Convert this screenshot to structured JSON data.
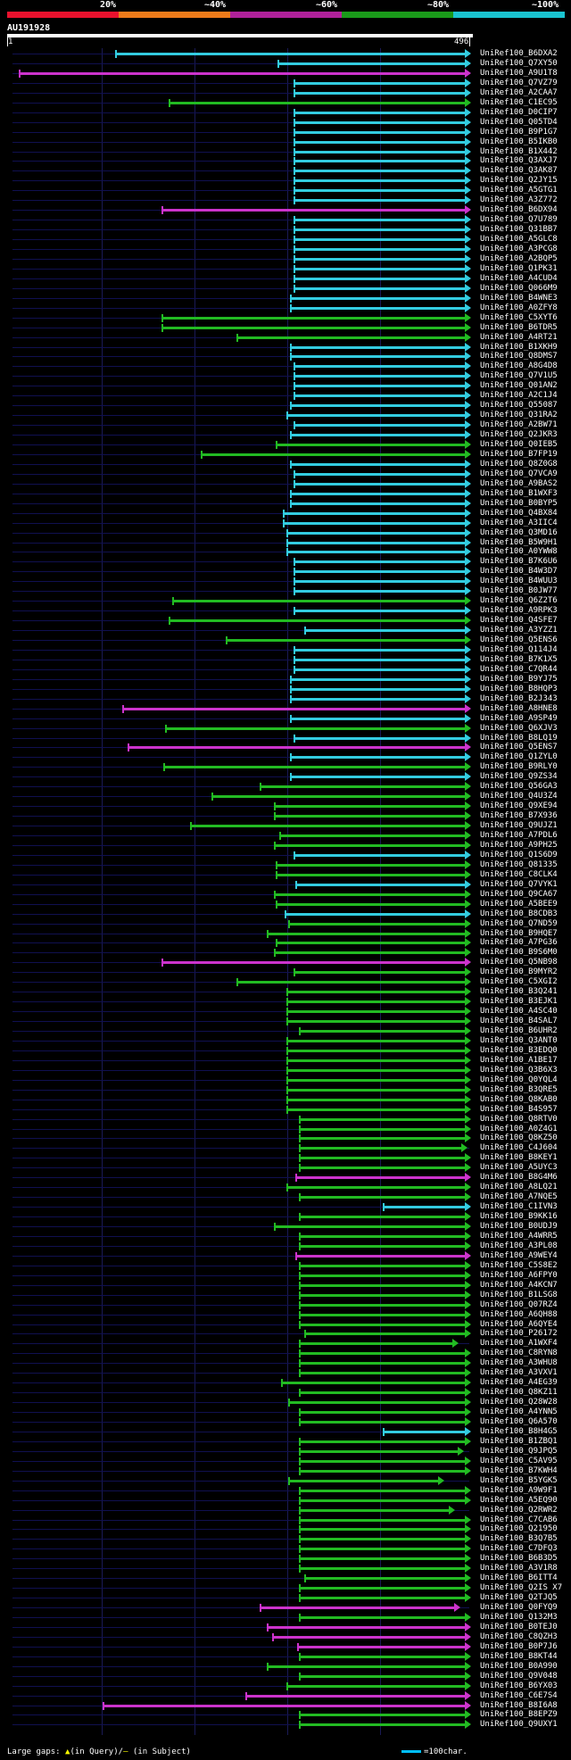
{
  "scale": {
    "labels": [
      "20%",
      "~40%",
      "~60%",
      "~80%",
      "~100%"
    ],
    "colors": [
      "#e8112d",
      "#ee7b1a",
      "#b0219a",
      "#1a9a1a",
      "#1ac4d0"
    ]
  },
  "query": {
    "title": "AU191928",
    "start": "1",
    "end": "496"
  },
  "footer": {
    "gaps_label": "Large gaps: ",
    "in_query": "(in Query)/",
    "in_subject": " (in Subject)",
    "scale_label": "=100char."
  },
  "hits": [
    [
      "B6DXA2",
      130,
      528,
      "c"
    ],
    [
      "Q7XY50",
      312,
      528,
      "c"
    ],
    [
      "A9U1T8",
      22,
      528,
      "m"
    ],
    [
      "Q7VZ79",
      330,
      528,
      "c"
    ],
    [
      "A2CAA7",
      330,
      528,
      "c"
    ],
    [
      "C1EC95",
      190,
      528,
      "g"
    ],
    [
      "D0CIP7",
      330,
      528,
      "c"
    ],
    [
      "Q05TD4",
      330,
      528,
      "c"
    ],
    [
      "B9P1G7",
      330,
      528,
      "c"
    ],
    [
      "B5IKB0",
      330,
      528,
      "c"
    ],
    [
      "B1X442",
      330,
      528,
      "c"
    ],
    [
      "Q3AXJ7",
      330,
      528,
      "c"
    ],
    [
      "Q3AK87",
      330,
      528,
      "c"
    ],
    [
      "Q2JY15",
      330,
      528,
      "c"
    ],
    [
      "A5GTG1",
      330,
      528,
      "c"
    ],
    [
      "A3Z772",
      330,
      528,
      "c"
    ],
    [
      "B6DX94",
      182,
      528,
      "m"
    ],
    [
      "Q7U789",
      330,
      528,
      "c"
    ],
    [
      "Q31BB7",
      330,
      528,
      "c"
    ],
    [
      "A5GLC8",
      330,
      528,
      "c"
    ],
    [
      "A3PCG8",
      330,
      528,
      "c"
    ],
    [
      "A2BQP5",
      330,
      528,
      "c"
    ],
    [
      "Q1PK31",
      330,
      528,
      "c"
    ],
    [
      "A4CUD4",
      330,
      528,
      "c"
    ],
    [
      "Q066M9",
      330,
      528,
      "c"
    ],
    [
      "B4WNE3",
      326,
      528,
      "c"
    ],
    [
      "A0ZFY8",
      326,
      528,
      "c"
    ],
    [
      "C5XYT6",
      182,
      528,
      "g"
    ],
    [
      "B6TDR5",
      182,
      528,
      "g"
    ],
    [
      "A4RT21",
      266,
      528,
      "g"
    ],
    [
      "B1XKH9",
      326,
      528,
      "c"
    ],
    [
      "Q8DMS7",
      326,
      528,
      "c"
    ],
    [
      "A8G4D8",
      330,
      528,
      "c"
    ],
    [
      "Q7V1U5",
      330,
      528,
      "c"
    ],
    [
      "Q01AN2",
      330,
      528,
      "c"
    ],
    [
      "A2C1J4",
      330,
      528,
      "c"
    ],
    [
      "Q55087",
      326,
      528,
      "c"
    ],
    [
      "Q31RA2",
      322,
      528,
      "c"
    ],
    [
      "A2BW71",
      330,
      528,
      "c"
    ],
    [
      "Q2JKR3",
      326,
      528,
      "c"
    ],
    [
      "Q0IEB5",
      310,
      528,
      "g"
    ],
    [
      "B7FP19",
      226,
      528,
      "g"
    ],
    [
      "Q8Z0G8",
      326,
      528,
      "c"
    ],
    [
      "Q7VCA9",
      330,
      528,
      "c"
    ],
    [
      "A9BAS2",
      330,
      528,
      "c"
    ],
    [
      "B1WXF3",
      326,
      528,
      "c"
    ],
    [
      "B0BYP5",
      326,
      528,
      "c"
    ],
    [
      "Q4BX84",
      318,
      528,
      "c"
    ],
    [
      "A3IIC4",
      318,
      528,
      "c"
    ],
    [
      "Q3MD16",
      322,
      528,
      "c"
    ],
    [
      "B5W9H1",
      322,
      528,
      "c"
    ],
    [
      "A0YWW8",
      322,
      528,
      "c"
    ],
    [
      "B7K6U6",
      330,
      528,
      "c"
    ],
    [
      "B4W3D7",
      330,
      528,
      "c"
    ],
    [
      "B4WUU3",
      330,
      528,
      "c"
    ],
    [
      "B0JW77",
      330,
      528,
      "c"
    ],
    [
      "Q6Z2T6",
      194,
      528,
      "g"
    ],
    [
      "A9RPK3",
      330,
      528,
      "c"
    ],
    [
      "Q4SFE7",
      190,
      528,
      "g"
    ],
    [
      "A3YZZ1",
      342,
      528,
      "c"
    ],
    [
      "Q5ENS6",
      254,
      528,
      "g"
    ],
    [
      "Q114J4",
      330,
      528,
      "c"
    ],
    [
      "B7K1X5",
      330,
      528,
      "c"
    ],
    [
      "C7QR44",
      330,
      528,
      "c"
    ],
    [
      "B9YJ75",
      326,
      528,
      "c"
    ],
    [
      "B8HQP3",
      326,
      528,
      "c"
    ],
    [
      "B2J343",
      326,
      528,
      "c"
    ],
    [
      "A8HNE8",
      138,
      528,
      "m"
    ],
    [
      "A9SP49",
      326,
      528,
      "c"
    ],
    [
      "Q6XJV3",
      186,
      528,
      "g"
    ],
    [
      "B8LQ19",
      330,
      528,
      "c"
    ],
    [
      "Q5ENS7",
      144,
      528,
      "m"
    ],
    [
      "Q1ZYL0",
      326,
      528,
      "c"
    ],
    [
      "B9RLY0",
      184,
      528,
      "g"
    ],
    [
      "Q9ZS34",
      326,
      528,
      "c"
    ],
    [
      "Q56GA3",
      292,
      528,
      "g"
    ],
    [
      "Q4U3Z4",
      238,
      528,
      "g"
    ],
    [
      "Q9XE94",
      308,
      528,
      "g"
    ],
    [
      "B7X936",
      308,
      528,
      "g"
    ],
    [
      "Q9UJZ1",
      214,
      528,
      "g"
    ],
    [
      "A7PDL6",
      314,
      528,
      "g"
    ],
    [
      "A9PH25",
      308,
      528,
      "g"
    ],
    [
      "Q1S6D9",
      330,
      528,
      "c"
    ],
    [
      "Q81335",
      310,
      528,
      "g"
    ],
    [
      "C8CLK4",
      310,
      528,
      "g"
    ],
    [
      "Q7VYK1",
      332,
      528,
      "c"
    ],
    [
      "Q9CA67",
      308,
      528,
      "g"
    ],
    [
      "A5BEE9",
      310,
      528,
      "g"
    ],
    [
      "B8CDB3",
      320,
      528,
      "c"
    ],
    [
      "Q7ND59",
      324,
      528,
      "g"
    ],
    [
      "B9HQE7",
      300,
      528,
      "g"
    ],
    [
      "A7PG36",
      310,
      528,
      "g"
    ],
    [
      "B9S6M0",
      308,
      528,
      "g"
    ],
    [
      "Q5NB98",
      182,
      528,
      "m"
    ],
    [
      "B9MYR2",
      330,
      528,
      "g"
    ],
    [
      "C5XGI2",
      266,
      528,
      "g"
    ],
    [
      "B3Q241",
      322,
      528,
      "g"
    ],
    [
      "B3EJK1",
      322,
      528,
      "g"
    ],
    [
      "A4SC40",
      322,
      528,
      "g"
    ],
    [
      "B4SAL7",
      322,
      528,
      "g"
    ],
    [
      "B6UHR2",
      336,
      528,
      "g"
    ],
    [
      "Q3ANT0",
      322,
      528,
      "g"
    ],
    [
      "B3EDQ0",
      322,
      528,
      "g"
    ],
    [
      "A1BE17",
      322,
      528,
      "g"
    ],
    [
      "Q3B6X3",
      322,
      528,
      "g"
    ],
    [
      "Q0YQL4",
      322,
      528,
      "g"
    ],
    [
      "B3QRE5",
      322,
      528,
      "g"
    ],
    [
      "Q8KAB0",
      322,
      528,
      "g"
    ],
    [
      "B4S957",
      322,
      528,
      "g"
    ],
    [
      "Q8RTV0",
      336,
      528,
      "g"
    ],
    [
      "A0Z4G1",
      336,
      528,
      "g"
    ],
    [
      "Q8KZ50",
      336,
      528,
      "g"
    ],
    [
      "C4J604",
      336,
      524,
      "g"
    ],
    [
      "B8KEY1",
      336,
      528,
      "g"
    ],
    [
      "A5UYC3",
      336,
      528,
      "g"
    ],
    [
      "B8G4M6",
      332,
      528,
      "m"
    ],
    [
      "A8LQ21",
      322,
      528,
      "g"
    ],
    [
      "A7NQE5",
      336,
      528,
      "g"
    ],
    [
      "C1IVN3",
      430,
      528,
      "c"
    ],
    [
      "B9KK16",
      336,
      528,
      "g"
    ],
    [
      "B0UDJ9",
      308,
      528,
      "g"
    ],
    [
      "A4WRR5",
      336,
      528,
      "g"
    ],
    [
      "A3PL08",
      336,
      528,
      "g"
    ],
    [
      "A9WEY4",
      332,
      528,
      "m"
    ],
    [
      "C5S8E2",
      336,
      528,
      "g"
    ],
    [
      "A6FPY0",
      336,
      528,
      "g"
    ],
    [
      "A4KCN7",
      336,
      528,
      "g"
    ],
    [
      "B1LSG8",
      336,
      528,
      "g"
    ],
    [
      "Q07RZ4",
      336,
      528,
      "g"
    ],
    [
      "A6QH88",
      336,
      528,
      "g"
    ],
    [
      "A6QYE4",
      336,
      528,
      "g"
    ],
    [
      "P26172",
      342,
      528,
      "g"
    ],
    [
      "A1WXF4",
      336,
      514,
      "g"
    ],
    [
      "C8RYN8",
      336,
      528,
      "g"
    ],
    [
      "A3WHU8",
      336,
      528,
      "g"
    ],
    [
      "A3VXV1",
      336,
      528,
      "g"
    ],
    [
      "A4EG39",
      316,
      528,
      "g"
    ],
    [
      "Q8KZ11",
      336,
      528,
      "g"
    ],
    [
      "Q28W28",
      324,
      528,
      "g"
    ],
    [
      "A4YNN5",
      336,
      528,
      "g"
    ],
    [
      "Q6A570",
      336,
      528,
      "g"
    ],
    [
      "B8H4G5",
      430,
      528,
      "c"
    ],
    [
      "B1ZBQ1",
      336,
      528,
      "g"
    ],
    [
      "Q9JPQ5",
      336,
      520,
      "g"
    ],
    [
      "C5AV95",
      336,
      528,
      "g"
    ],
    [
      "B7KWH4",
      336,
      528,
      "g"
    ],
    [
      "B5YGK5",
      324,
      498,
      "g"
    ],
    [
      "A9W9F1",
      336,
      528,
      "g"
    ],
    [
      "A5EQ90",
      336,
      528,
      "g"
    ],
    [
      "Q2RWR2",
      336,
      510,
      "g"
    ],
    [
      "C7CAB6",
      336,
      528,
      "g"
    ],
    [
      "Q21950",
      336,
      528,
      "g"
    ],
    [
      "B3Q7B5",
      336,
      528,
      "g"
    ],
    [
      "C7DFQ3",
      336,
      528,
      "g"
    ],
    [
      "B6B3D5",
      336,
      528,
      "g"
    ],
    [
      "A3V1R8",
      336,
      528,
      "g"
    ],
    [
      "B6ITT4",
      342,
      528,
      "g"
    ],
    [
      "Q2IS X7",
      336,
      528,
      "g"
    ],
    [
      "Q2TJQ5",
      336,
      528,
      "g"
    ],
    [
      "Q0FYQ9",
      292,
      516,
      "m"
    ],
    [
      "Q132M3",
      336,
      528,
      "g"
    ],
    [
      "B0TEJ0",
      300,
      528,
      "m"
    ],
    [
      "C8QZH3",
      306,
      528,
      "m"
    ],
    [
      "B0P7J6",
      334,
      528,
      "m"
    ],
    [
      "B8KT44",
      336,
      528,
      "g"
    ],
    [
      "B0A990",
      300,
      528,
      "g"
    ],
    [
      "Q9V048",
      336,
      528,
      "g"
    ],
    [
      "B6YX03",
      322,
      528,
      "g"
    ],
    [
      "C6E7S4",
      276,
      528,
      "m"
    ],
    [
      "B8I6A8",
      116,
      528,
      "m"
    ],
    [
      "B8EPZ9",
      336,
      528,
      "g"
    ],
    [
      "Q9UXY1",
      336,
      528,
      "g"
    ]
  ]
}
